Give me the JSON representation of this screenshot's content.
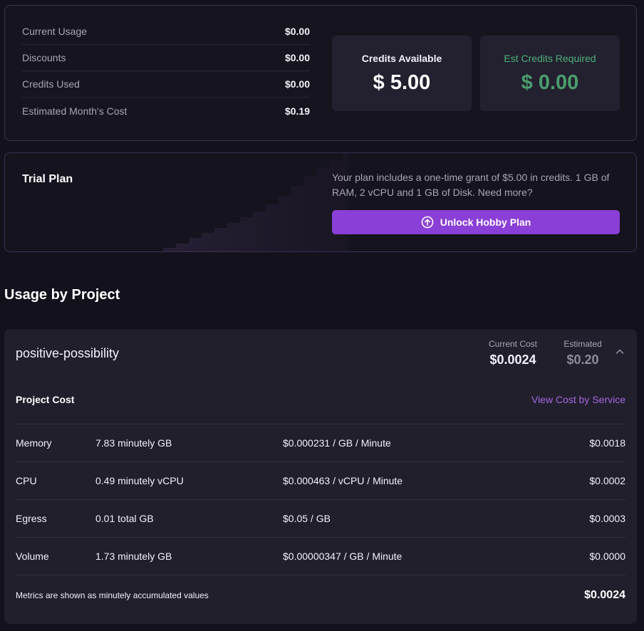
{
  "summary": {
    "rows": [
      {
        "label": "Current Usage",
        "value": "$0.00"
      },
      {
        "label": "Discounts",
        "value": "$0.00"
      },
      {
        "label": "Credits Used",
        "value": "$0.00"
      },
      {
        "label": "Estimated Month's Cost",
        "value": "$0.19"
      }
    ],
    "credits_available": {
      "title": "Credits Available",
      "value": "$ 5.00"
    },
    "credits_required": {
      "title": "Est Credits Required",
      "value": "$ 0.00"
    }
  },
  "trial": {
    "title": "Trial Plan",
    "description": "Your plan includes a one-time grant of $5.00 in credits. 1 GB of RAM, 2 vCPU and 1 GB of Disk. Need more?",
    "button_label": "Unlock Hobby Plan"
  },
  "usage_title": "Usage by Project",
  "project": {
    "name": "positive-possibility",
    "current_cost_label": "Current Cost",
    "current_cost": "$0.0024",
    "estimated_label": "Estimated",
    "estimated": "$0.20",
    "cost_section_label": "Project Cost",
    "view_link": "View Cost by Service",
    "rows": [
      {
        "name": "Memory",
        "amount": "7.83 minutely GB",
        "rate": "$0.000231 / GB / Minute",
        "cost": "$0.0018"
      },
      {
        "name": "CPU",
        "amount": "0.49 minutely vCPU",
        "rate": "$0.000463 / vCPU / Minute",
        "cost": "$0.0002"
      },
      {
        "name": "Egress",
        "amount": "0.01 total GB",
        "rate": "$0.05 / GB",
        "cost": "$0.0003"
      },
      {
        "name": "Volume",
        "amount": "1.73 minutely GB",
        "rate": "$0.00000347 / GB / Minute",
        "cost": "$0.0000"
      }
    ],
    "footer_note": "Metrics are shown as minutely accumulated values",
    "total": "$0.0024"
  },
  "colors": {
    "accent": "#8a3fd6",
    "link": "#a766e3",
    "success": "#4b9e6d",
    "background": "#13111c"
  }
}
